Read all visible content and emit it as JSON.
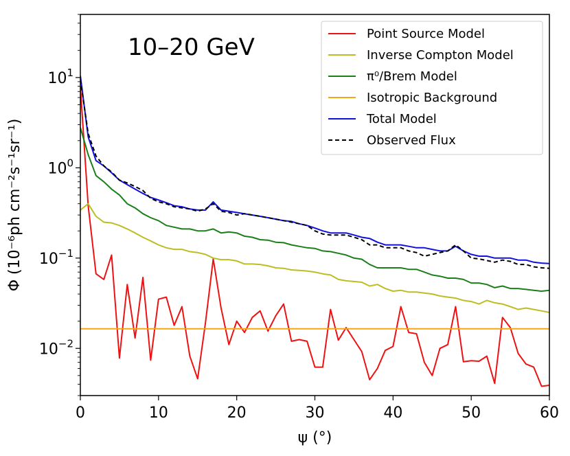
{
  "chart_data": {
    "type": "line",
    "title": "10–20 GeV",
    "xlabel": "ψ (°)",
    "ylabel": "Φ (10⁻⁶ph cm⁻²s⁻¹sr⁻¹)",
    "xscale": "linear",
    "yscale": "log",
    "xlim": [
      0,
      60
    ],
    "ylim": [
      0.003,
      50
    ],
    "x_ticks": [
      0,
      10,
      20,
      30,
      40,
      50,
      60
    ],
    "y_ticks": [
      {
        "value": 0.01,
        "base": "10",
        "exp": "−2"
      },
      {
        "value": 0.1,
        "base": "10",
        "exp": "−1"
      },
      {
        "value": 1,
        "base": "10",
        "exp": "0"
      },
      {
        "value": 10,
        "base": "10",
        "exp": "1"
      }
    ],
    "legend_position": "top-right",
    "series": [
      {
        "name": "Point Source Model",
        "color": "#ee1111",
        "dash": "solid",
        "x": [
          0,
          1,
          2,
          3,
          4,
          5,
          6,
          7,
          8,
          9,
          10,
          11,
          12,
          13,
          14,
          15,
          16,
          17,
          18,
          19,
          20,
          21,
          22,
          23,
          24,
          25,
          26,
          27,
          28,
          29,
          30,
          31,
          32,
          33,
          34,
          35,
          36,
          37,
          38,
          39,
          40,
          41,
          42,
          43,
          44,
          45,
          46,
          47,
          48,
          49,
          50,
          51,
          52,
          53,
          54,
          55,
          56,
          57,
          58,
          59,
          60
        ],
        "y": [
          8.0,
          0.38,
          0.067,
          0.058,
          0.108,
          0.0078,
          0.051,
          0.013,
          0.061,
          0.0074,
          0.035,
          0.037,
          0.018,
          0.029,
          0.0082,
          0.0046,
          0.019,
          0.098,
          0.028,
          0.011,
          0.02,
          0.015,
          0.022,
          0.026,
          0.0155,
          0.023,
          0.031,
          0.012,
          0.0125,
          0.012,
          0.0062,
          0.0062,
          0.027,
          0.0123,
          0.017,
          0.0125,
          0.0092,
          0.0045,
          0.006,
          0.0095,
          0.0105,
          0.029,
          0.015,
          0.0145,
          0.007,
          0.005,
          0.01,
          0.011,
          0.029,
          0.0071,
          0.0073,
          0.0072,
          0.0082,
          0.0041,
          0.022,
          0.017,
          0.0088,
          0.0067,
          0.0062,
          0.0038,
          0.0039
        ]
      },
      {
        "name": "Inverse Compton Model",
        "color": "#bcbd22",
        "dash": "solid",
        "x": [
          0,
          1,
          2,
          3,
          4,
          5,
          6,
          7,
          8,
          9,
          10,
          11,
          12,
          13,
          14,
          15,
          16,
          17,
          18,
          19,
          20,
          21,
          22,
          23,
          24,
          25,
          26,
          27,
          28,
          29,
          30,
          31,
          32,
          33,
          34,
          35,
          36,
          37,
          38,
          39,
          40,
          41,
          42,
          43,
          44,
          45,
          46,
          47,
          48,
          49,
          50,
          51,
          52,
          53,
          54,
          55,
          56,
          57,
          58,
          59,
          60
        ],
        "y": [
          0.34,
          0.4,
          0.29,
          0.25,
          0.245,
          0.23,
          0.21,
          0.19,
          0.17,
          0.155,
          0.14,
          0.13,
          0.125,
          0.125,
          0.118,
          0.115,
          0.11,
          0.1,
          0.096,
          0.096,
          0.093,
          0.086,
          0.086,
          0.085,
          0.082,
          0.078,
          0.077,
          0.074,
          0.073,
          0.072,
          0.07,
          0.067,
          0.065,
          0.058,
          0.056,
          0.055,
          0.054,
          0.049,
          0.051,
          0.046,
          0.043,
          0.044,
          0.042,
          0.042,
          0.041,
          0.04,
          0.038,
          0.037,
          0.036,
          0.034,
          0.033,
          0.031,
          0.034,
          0.032,
          0.031,
          0.029,
          0.027,
          0.028,
          0.027,
          0.026,
          0.025
        ]
      },
      {
        "name": "π⁰/Brem Model",
        "color": "#1a7f1a",
        "dash": "solid",
        "x": [
          0,
          1,
          2,
          3,
          4,
          5,
          6,
          7,
          8,
          9,
          10,
          11,
          12,
          13,
          14,
          15,
          16,
          17,
          18,
          19,
          20,
          21,
          22,
          23,
          24,
          25,
          26,
          27,
          28,
          29,
          30,
          31,
          32,
          33,
          34,
          35,
          36,
          37,
          38,
          39,
          40,
          41,
          42,
          43,
          44,
          45,
          46,
          47,
          48,
          49,
          50,
          51,
          52,
          53,
          54,
          55,
          56,
          57,
          58,
          59,
          60
        ],
        "y": [
          2.8,
          1.4,
          0.82,
          0.7,
          0.58,
          0.5,
          0.4,
          0.36,
          0.31,
          0.28,
          0.26,
          0.23,
          0.22,
          0.21,
          0.21,
          0.2,
          0.2,
          0.21,
          0.19,
          0.195,
          0.19,
          0.175,
          0.17,
          0.16,
          0.158,
          0.15,
          0.148,
          0.14,
          0.135,
          0.13,
          0.128,
          0.12,
          0.118,
          0.113,
          0.108,
          0.1,
          0.097,
          0.085,
          0.078,
          0.078,
          0.078,
          0.078,
          0.075,
          0.075,
          0.07,
          0.065,
          0.063,
          0.06,
          0.06,
          0.058,
          0.053,
          0.053,
          0.051,
          0.047,
          0.049,
          0.046,
          0.046,
          0.045,
          0.044,
          0.043,
          0.044
        ]
      },
      {
        "name": "Isotropic Background",
        "color": "#f5a615",
        "dash": "solid",
        "x": [
          0,
          60
        ],
        "y": [
          0.0165,
          0.0165
        ]
      },
      {
        "name": "Total Model",
        "color": "#1010dd",
        "dash": "solid",
        "x": [
          0,
          1,
          2,
          3,
          4,
          5,
          6,
          7,
          8,
          9,
          10,
          11,
          12,
          13,
          14,
          15,
          16,
          17,
          18,
          19,
          20,
          21,
          22,
          23,
          24,
          25,
          26,
          27,
          28,
          29,
          30,
          31,
          32,
          33,
          34,
          35,
          36,
          37,
          38,
          39,
          40,
          41,
          42,
          43,
          44,
          45,
          46,
          47,
          48,
          49,
          50,
          51,
          52,
          53,
          54,
          55,
          56,
          57,
          58,
          59,
          60
        ],
        "y": [
          10.5,
          2.2,
          1.2,
          1.05,
          0.88,
          0.73,
          0.65,
          0.58,
          0.52,
          0.47,
          0.44,
          0.41,
          0.38,
          0.37,
          0.35,
          0.34,
          0.34,
          0.42,
          0.34,
          0.33,
          0.32,
          0.31,
          0.3,
          0.29,
          0.28,
          0.27,
          0.26,
          0.255,
          0.24,
          0.23,
          0.215,
          0.2,
          0.19,
          0.19,
          0.19,
          0.18,
          0.17,
          0.165,
          0.15,
          0.14,
          0.14,
          0.14,
          0.135,
          0.13,
          0.13,
          0.125,
          0.12,
          0.12,
          0.135,
          0.12,
          0.11,
          0.105,
          0.105,
          0.1,
          0.1,
          0.1,
          0.095,
          0.095,
          0.09,
          0.088,
          0.087
        ]
      },
      {
        "name": "Observed Flux",
        "color": "#000000",
        "dash": "dashed",
        "x": [
          0,
          1,
          2,
          3,
          4,
          5,
          6,
          7,
          8,
          9,
          10,
          11,
          12,
          13,
          14,
          15,
          16,
          17,
          18,
          19,
          20,
          21,
          22,
          23,
          24,
          25,
          26,
          27,
          28,
          29,
          30,
          31,
          32,
          33,
          34,
          35,
          36,
          37,
          38,
          39,
          40,
          41,
          42,
          43,
          44,
          45,
          46,
          47,
          48,
          49,
          50,
          51,
          52,
          53,
          54,
          55,
          56,
          57,
          58,
          59,
          60
        ],
        "y": [
          9.5,
          2.4,
          1.35,
          1.05,
          0.9,
          0.73,
          0.68,
          0.62,
          0.56,
          0.46,
          0.42,
          0.4,
          0.37,
          0.36,
          0.35,
          0.33,
          0.35,
          0.4,
          0.33,
          0.32,
          0.3,
          0.31,
          0.3,
          0.29,
          0.28,
          0.27,
          0.26,
          0.25,
          0.24,
          0.23,
          0.2,
          0.185,
          0.18,
          0.18,
          0.18,
          0.17,
          0.16,
          0.14,
          0.14,
          0.13,
          0.13,
          0.13,
          0.12,
          0.115,
          0.105,
          0.11,
          0.115,
          0.12,
          0.14,
          0.12,
          0.1,
          0.098,
          0.094,
          0.09,
          0.095,
          0.092,
          0.085,
          0.085,
          0.08,
          0.078,
          0.077
        ]
      }
    ]
  }
}
